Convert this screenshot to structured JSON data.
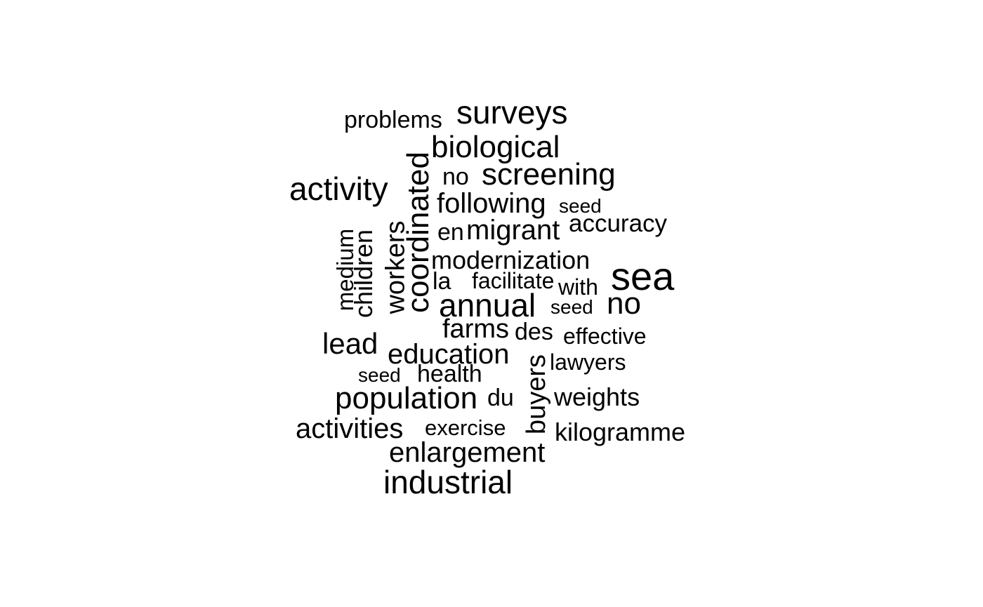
{
  "words": [
    {
      "text": "problems"
    },
    {
      "text": "surveys"
    },
    {
      "text": "biological"
    },
    {
      "text": "coordinated"
    },
    {
      "text": "no"
    },
    {
      "text": "screening"
    },
    {
      "text": "activity"
    },
    {
      "text": "following"
    },
    {
      "text": "seed"
    },
    {
      "text": "en"
    },
    {
      "text": "migrant"
    },
    {
      "text": "accuracy"
    },
    {
      "text": "medium"
    },
    {
      "text": "children"
    },
    {
      "text": "workers"
    },
    {
      "text": "modernization"
    },
    {
      "text": "sea"
    },
    {
      "text": "la"
    },
    {
      "text": "facilitate"
    },
    {
      "text": "with"
    },
    {
      "text": "annual"
    },
    {
      "text": "seed"
    },
    {
      "text": "no"
    },
    {
      "text": "farms"
    },
    {
      "text": "des"
    },
    {
      "text": "effective"
    },
    {
      "text": "lead"
    },
    {
      "text": "education"
    },
    {
      "text": "lawyers"
    },
    {
      "text": "seed"
    },
    {
      "text": "health"
    },
    {
      "text": "buyers"
    },
    {
      "text": "population"
    },
    {
      "text": "du"
    },
    {
      "text": "weights"
    },
    {
      "text": "activities"
    },
    {
      "text": "exercise"
    },
    {
      "text": "kilogramme"
    },
    {
      "text": "enlargement"
    },
    {
      "text": "industrial"
    }
  ]
}
